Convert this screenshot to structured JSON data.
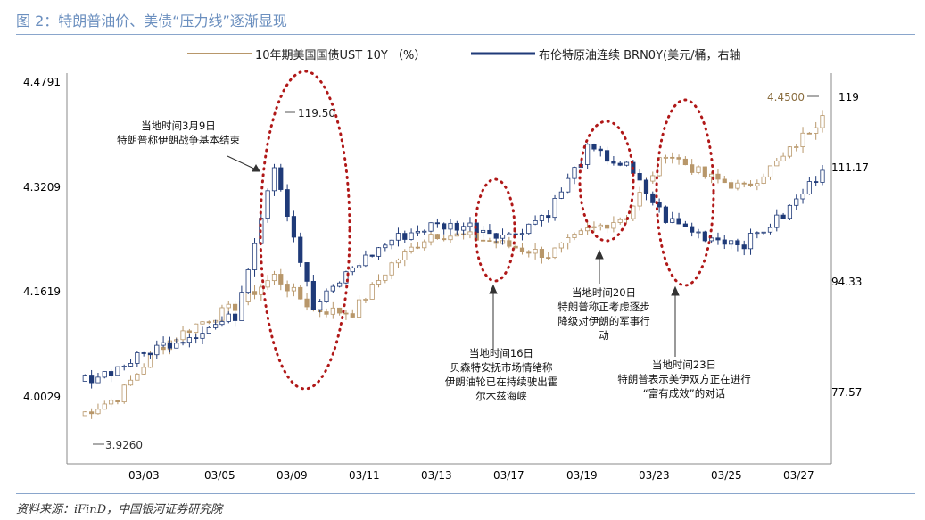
{
  "figure": {
    "title": "图 2：特朗普油价、美债“压力线”逐渐显现",
    "source": "资料来源：iFinD，中国银河证券研究院"
  },
  "chart_data": {
    "type": "candlestick",
    "legend": {
      "placement": "top",
      "items": [
        {
          "name": "10年期美国国债UST 10Y （%）",
          "color": "#b8976a",
          "axis": "left"
        },
        {
          "name": "布伦特原油连续 BRN0Y(美元/桶，右轴",
          "color": "#1f3a78",
          "axis": "right"
        }
      ]
    },
    "left_axis": {
      "ticks": [
        "4.4791",
        "4.3209",
        "4.1619",
        "4.0029"
      ],
      "range": [
        3.89,
        4.52
      ]
    },
    "right_axis": {
      "ticks": [
        "119",
        "111.17",
        "94.33",
        "77.57"
      ],
      "range": [
        70,
        125
      ]
    },
    "x_ticks": [
      "03/03",
      "03/05",
      "03/09",
      "03/11",
      "03/13",
      "03/17",
      "03/19",
      "03/23",
      "03/25",
      "03/27"
    ],
    "grid": false,
    "value_labels": [
      {
        "text": "3.9260",
        "series": "UST 10Y",
        "value": 3.926
      },
      {
        "text": "119.50",
        "series": "BRN0Y",
        "value": 119.5
      },
      {
        "text": "4.4500",
        "series": "UST 10Y",
        "value": 4.45
      }
    ],
    "annotations": [
      {
        "id": "a1",
        "lines": [
          "当地时间3月9日",
          "特朗普称伊朗战争基本结束"
        ]
      },
      {
        "id": "a2",
        "lines": [
          "当地时间16日",
          "贝森特安抚市场情绪称",
          "伊朗油轮已在持续驶出霍",
          "尔木兹海峡"
        ]
      },
      {
        "id": "a3",
        "lines": [
          "当地时间20日",
          "特朗普称正考虑逐步",
          "降级对伊朗的军事行",
          "动"
        ]
      },
      {
        "id": "a4",
        "lines": [
          "当地时间23日",
          "特朗普表示美伊双方正在进行",
          "“富有成效”的对话"
        ]
      }
    ],
    "series": [
      {
        "name": "10年期美国国债UST 10Y （%）",
        "axis": "left",
        "points": [
          {
            "date": "03/02",
            "value": 3.955
          },
          {
            "date": "03/03",
            "value": 3.985
          },
          {
            "date": "03/04",
            "value": 4.065
          },
          {
            "date": "03/05",
            "value": 4.105
          },
          {
            "date": "03/06",
            "value": 4.135
          },
          {
            "date": "03/09",
            "value": 4.185
          },
          {
            "date": "03/10",
            "value": 4.13
          },
          {
            "date": "03/11",
            "value": 4.125
          },
          {
            "date": "03/12",
            "value": 4.205
          },
          {
            "date": "03/13",
            "value": 4.255
          },
          {
            "date": "03/16",
            "value": 4.25
          },
          {
            "date": "03/17",
            "value": 4.235
          },
          {
            "date": "03/18",
            "value": 4.22
          },
          {
            "date": "03/19",
            "value": 4.26
          },
          {
            "date": "03/20",
            "value": 4.285
          },
          {
            "date": "03/23",
            "value": 4.39
          },
          {
            "date": "03/24",
            "value": 4.35
          },
          {
            "date": "03/25",
            "value": 4.33
          },
          {
            "date": "03/26",
            "value": 4.38
          },
          {
            "date": "03/27",
            "value": 4.45
          }
        ]
      },
      {
        "name": "布伦特原油连续 BRN0Y(美元/桶，右轴",
        "axis": "right",
        "points": [
          {
            "date": "03/02",
            "value": 80.5
          },
          {
            "date": "03/03",
            "value": 82.5
          },
          {
            "date": "03/04",
            "value": 85.5
          },
          {
            "date": "03/05",
            "value": 87.5
          },
          {
            "date": "03/06",
            "value": 90.0
          },
          {
            "date": "03/09",
            "value": 112.0
          },
          {
            "date": "03/10",
            "value": 91.0
          },
          {
            "date": "03/11",
            "value": 97.0
          },
          {
            "date": "03/12",
            "value": 101.0
          },
          {
            "date": "03/13",
            "value": 103.0
          },
          {
            "date": "03/16",
            "value": 103.0
          },
          {
            "date": "03/17",
            "value": 101.5
          },
          {
            "date": "03/18",
            "value": 105.0
          },
          {
            "date": "03/19",
            "value": 114.0
          },
          {
            "date": "03/20",
            "value": 111.5
          },
          {
            "date": "03/23",
            "value": 104.0
          },
          {
            "date": "03/24",
            "value": 101.5
          },
          {
            "date": "03/25",
            "value": 100.5
          },
          {
            "date": "03/26",
            "value": 104.5
          },
          {
            "date": "03/27",
            "value": 111.0
          }
        ]
      }
    ]
  }
}
